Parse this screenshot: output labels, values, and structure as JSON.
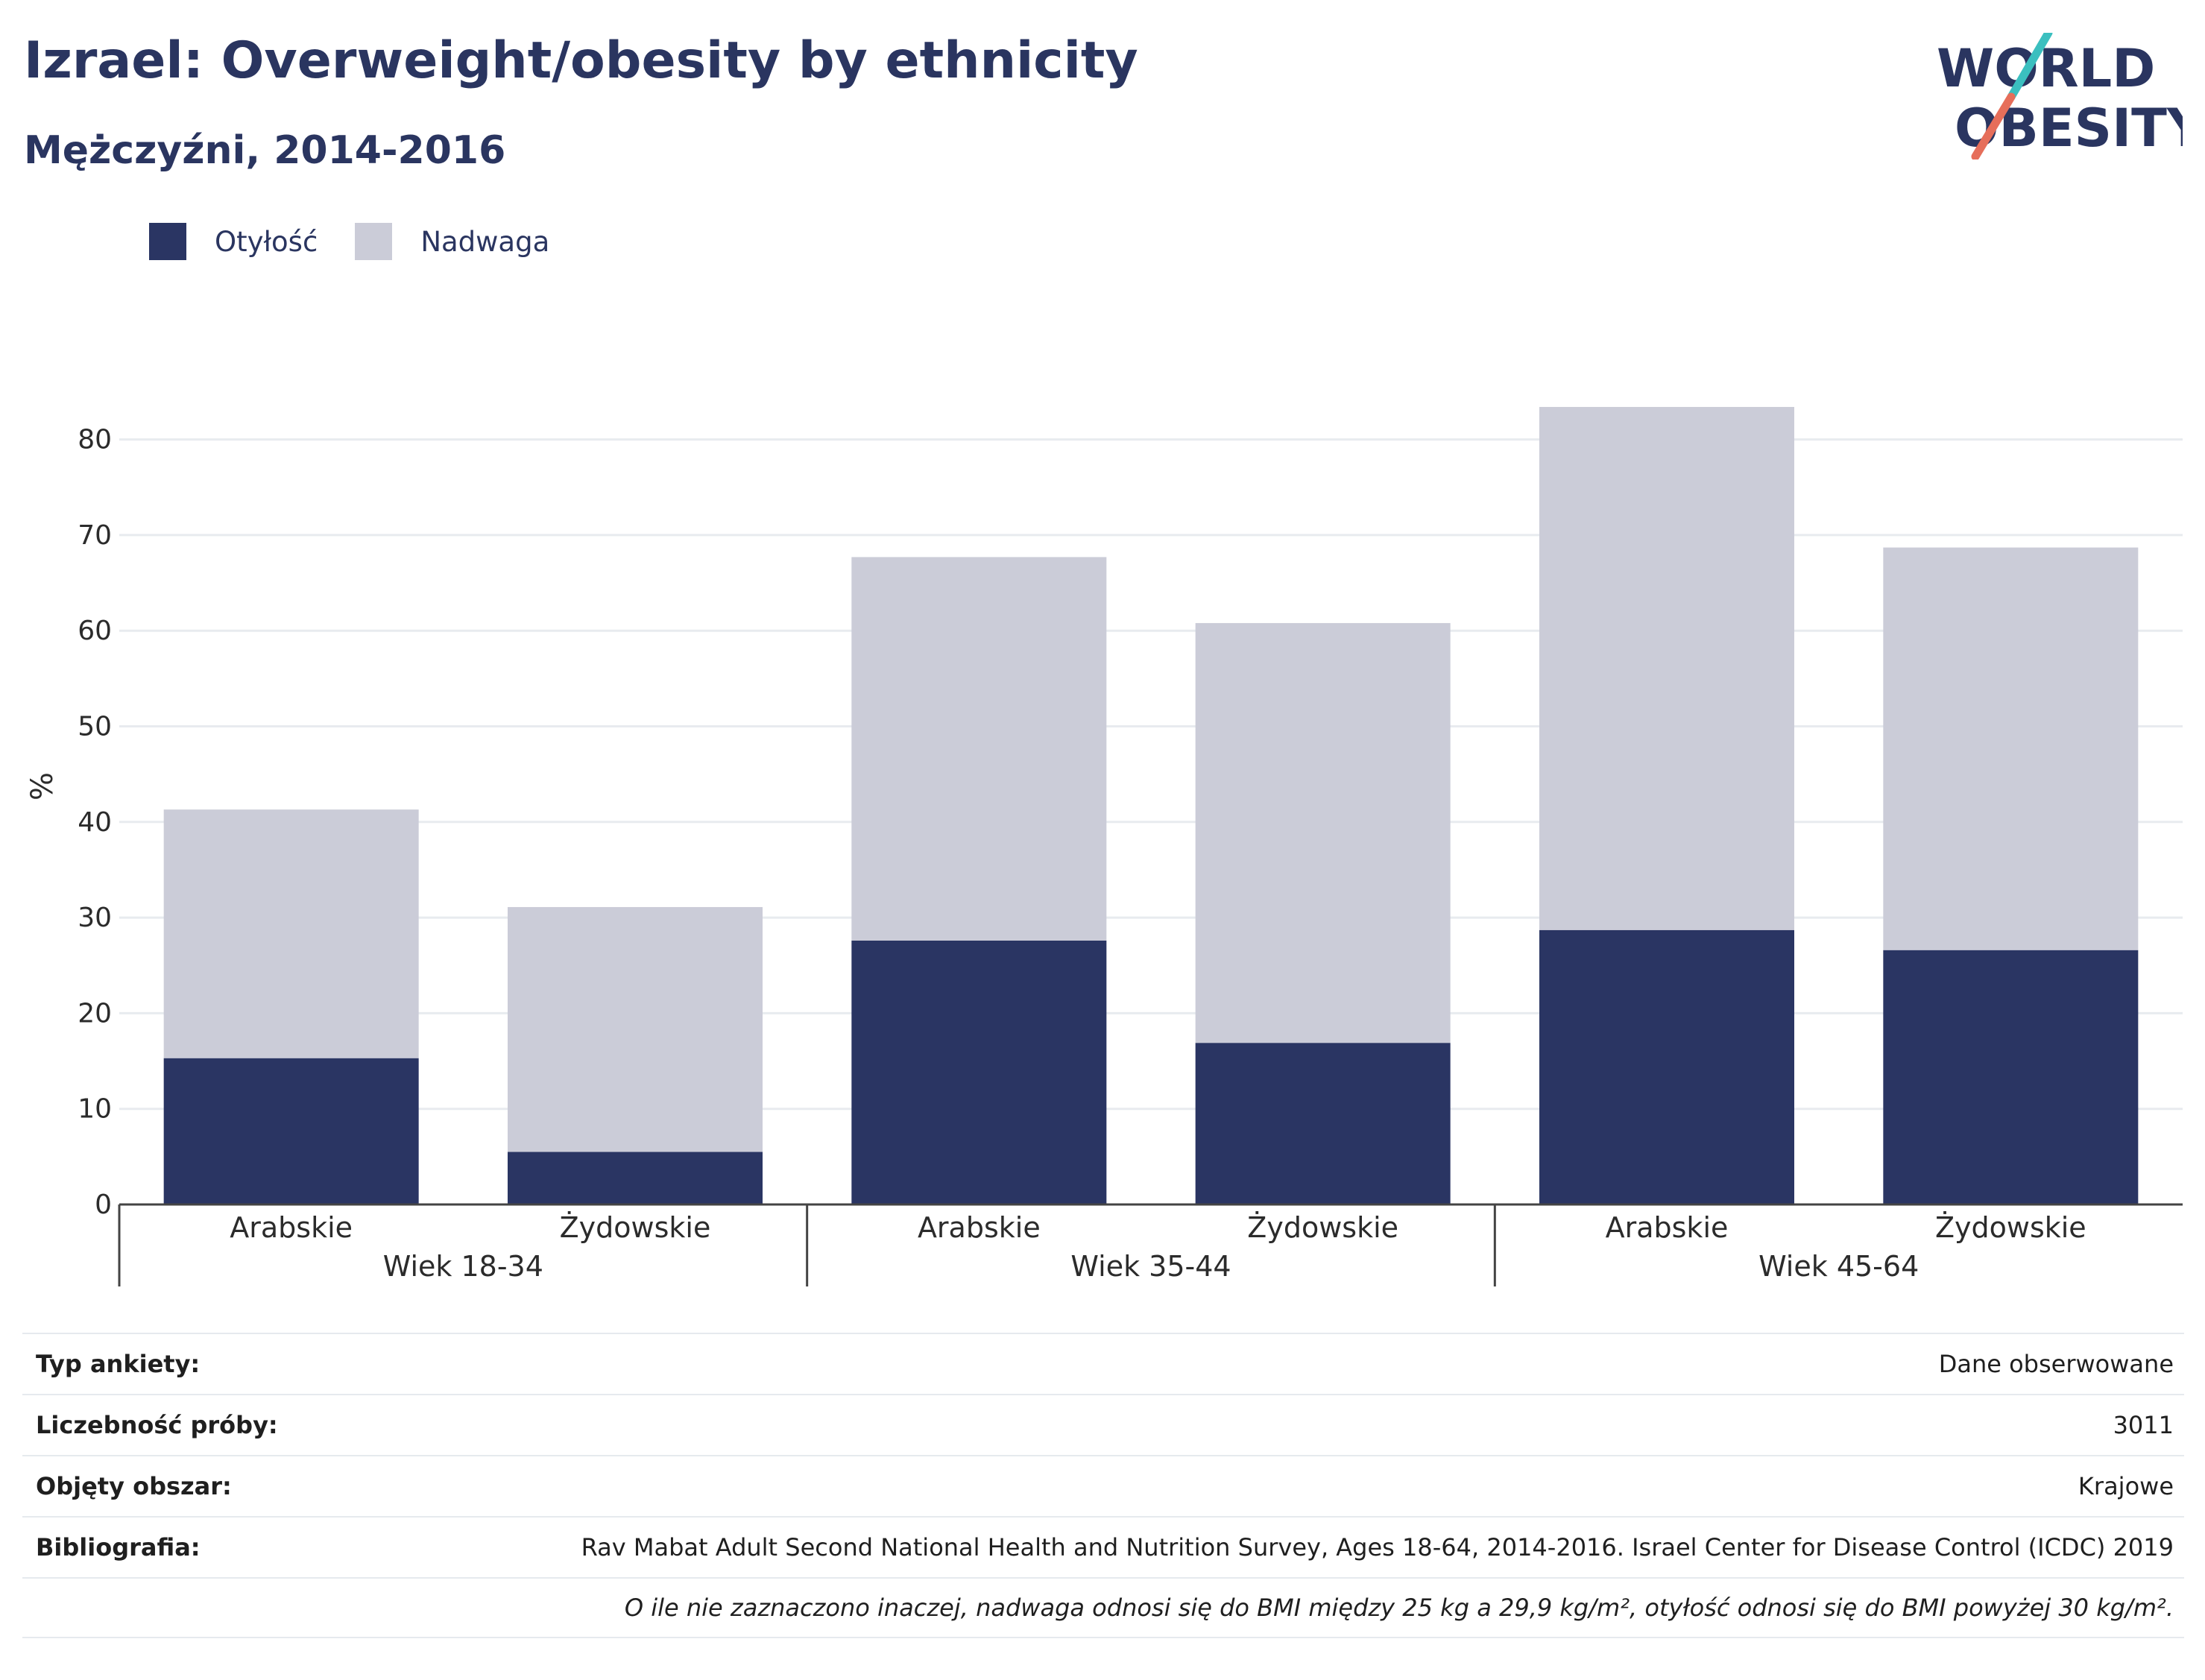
{
  "header": {
    "title": "Izrael: Overweight/obesity by ethnicity",
    "subtitle": "Mężczyźni, 2014-2016"
  },
  "logo": {
    "line1": "WORLD",
    "line2": "OBESITY"
  },
  "colors": {
    "obesity": "#2a3563",
    "overweight": "#cbccd8",
    "text": "#2a3560",
    "accent_teal": "#3bbfbf",
    "accent_coral": "#e66e5a"
  },
  "chart_data": {
    "type": "bar",
    "stacked": true,
    "ylabel": "%",
    "ylim": [
      0,
      85
    ],
    "yticks": [
      0,
      10,
      20,
      30,
      40,
      50,
      60,
      70,
      80
    ],
    "grid": true,
    "legend_position": "top-left",
    "groups": [
      "Wiek 18-34",
      "Wiek 35-44",
      "Wiek 45-64"
    ],
    "categories": [
      "Arabskie",
      "Żydowskie",
      "Arabskie",
      "Żydowskie",
      "Arabskie",
      "Żydowskie"
    ],
    "series": [
      {
        "name": "Otyłość",
        "values": [
          15.3,
          5.5,
          27.6,
          16.9,
          28.7,
          26.6
        ]
      },
      {
        "name": "Nadwaga",
        "values": [
          26.0,
          25.6,
          40.1,
          43.9,
          54.7,
          42.1
        ]
      }
    ]
  },
  "info": {
    "rows": [
      {
        "label": "Typ ankiety:",
        "value": "Dane obserwowane"
      },
      {
        "label": "Liczebność próby:",
        "value": "3011"
      },
      {
        "label": "Objęty obszar:",
        "value": "Krajowe"
      },
      {
        "label": "Bibliografia:",
        "value": "Rav Mabat Adult Second National Health and Nutrition Survey, Ages 18-64, 2014-2016. Israel Center for Disease Control (ICDC) 2019"
      }
    ],
    "footnote": "O ile nie zaznaczono inaczej, nadwaga odnosi się do BMI między 25 kg a 29,9 kg/m², otyłość odnosi się do BMI powyżej 30 kg/m²."
  }
}
